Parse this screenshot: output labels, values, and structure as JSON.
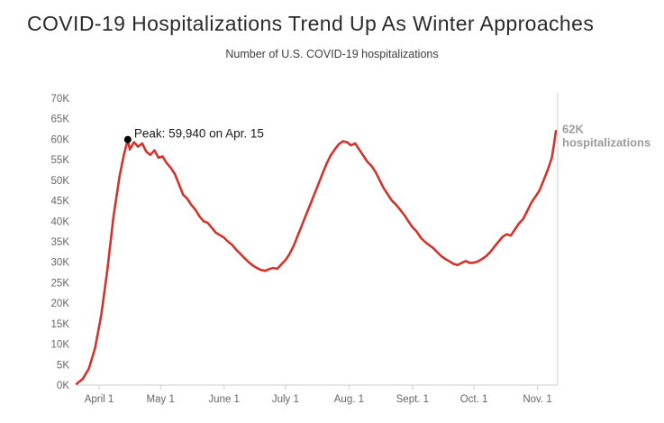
{
  "header": {
    "title": "COVID-19 Hospitalizations Trend Up As Winter Approaches",
    "subtitle": "Number of U.S. COVID-19 hospitalizations"
  },
  "chart_data": {
    "type": "line",
    "title": "Number of U.S. COVID-19 hospitalizations",
    "unit": "thousands of hospitalizations",
    "ylim": [
      0,
      70
    ],
    "grid": false,
    "legend": false,
    "line_color": "#d0342c",
    "annotation_color": "#000000",
    "end_label_color": "#9b9b9b",
    "axis_color": "#cccccc",
    "tick_label_color": "#666666",
    "y_ticks": [
      {
        "value": 0,
        "label": "0K"
      },
      {
        "value": 5,
        "label": "5K"
      },
      {
        "value": 10,
        "label": "10K"
      },
      {
        "value": 15,
        "label": "15K"
      },
      {
        "value": 20,
        "label": "20K"
      },
      {
        "value": 25,
        "label": "25K"
      },
      {
        "value": 30,
        "label": "30K"
      },
      {
        "value": 35,
        "label": "35K"
      },
      {
        "value": 40,
        "label": "40K"
      },
      {
        "value": 45,
        "label": "45K"
      },
      {
        "value": 50,
        "label": "50K"
      },
      {
        "value": 55,
        "label": "55K"
      },
      {
        "value": 60,
        "label": "60K"
      },
      {
        "value": 65,
        "label": "65K"
      },
      {
        "value": 70,
        "label": "70K"
      }
    ],
    "x_ticks": [
      {
        "date": "2020-04-01",
        "label": "April 1"
      },
      {
        "date": "2020-05-01",
        "label": "May 1"
      },
      {
        "date": "2020-06-01",
        "label": "June 1"
      },
      {
        "date": "2020-07-01",
        "label": "July 1"
      },
      {
        "date": "2020-08-01",
        "label": "Aug. 1"
      },
      {
        "date": "2020-09-01",
        "label": "Sept. 1"
      },
      {
        "date": "2020-10-01",
        "label": "Oct. 1"
      },
      {
        "date": "2020-11-01",
        "label": "Nov. 1"
      }
    ],
    "annotation": {
      "text": "Peak: 59,940 on Apr. 15",
      "date": "2020-04-15",
      "value": 59.94
    },
    "end_label": {
      "line1": "62K",
      "line2": "hospitalizations",
      "value": 62
    },
    "series": [
      {
        "name": "U.S. COVID-19 hospitalizations (thousands)",
        "dates": [
          "2020-03-21",
          "2020-03-24",
          "2020-03-27",
          "2020-03-30",
          "2020-04-02",
          "2020-04-05",
          "2020-04-08",
          "2020-04-11",
          "2020-04-13",
          "2020-04-15",
          "2020-04-16",
          "2020-04-18",
          "2020-04-20",
          "2020-04-22",
          "2020-04-24",
          "2020-04-26",
          "2020-04-28",
          "2020-04-30",
          "2020-05-02",
          "2020-05-04",
          "2020-05-06",
          "2020-05-08",
          "2020-05-10",
          "2020-05-12",
          "2020-05-14",
          "2020-05-16",
          "2020-05-18",
          "2020-05-20",
          "2020-05-22",
          "2020-05-24",
          "2020-05-26",
          "2020-05-28",
          "2020-05-30",
          "2020-06-01",
          "2020-06-03",
          "2020-06-05",
          "2020-06-07",
          "2020-06-09",
          "2020-06-11",
          "2020-06-13",
          "2020-06-15",
          "2020-06-17",
          "2020-06-19",
          "2020-06-21",
          "2020-06-23",
          "2020-06-25",
          "2020-06-27",
          "2020-06-29",
          "2020-07-01",
          "2020-07-03",
          "2020-07-05",
          "2020-07-07",
          "2020-07-09",
          "2020-07-11",
          "2020-07-13",
          "2020-07-15",
          "2020-07-17",
          "2020-07-19",
          "2020-07-21",
          "2020-07-23",
          "2020-07-25",
          "2020-07-27",
          "2020-07-29",
          "2020-07-31",
          "2020-08-02",
          "2020-08-04",
          "2020-08-06",
          "2020-08-08",
          "2020-08-10",
          "2020-08-12",
          "2020-08-14",
          "2020-08-16",
          "2020-08-18",
          "2020-08-20",
          "2020-08-22",
          "2020-08-24",
          "2020-08-26",
          "2020-08-28",
          "2020-08-30",
          "2020-09-01",
          "2020-09-03",
          "2020-09-05",
          "2020-09-07",
          "2020-09-09",
          "2020-09-11",
          "2020-09-13",
          "2020-09-15",
          "2020-09-17",
          "2020-09-19",
          "2020-09-21",
          "2020-09-23",
          "2020-09-25",
          "2020-09-27",
          "2020-09-29",
          "2020-10-01",
          "2020-10-03",
          "2020-10-05",
          "2020-10-07",
          "2020-10-09",
          "2020-10-11",
          "2020-10-13",
          "2020-10-15",
          "2020-10-17",
          "2020-10-19",
          "2020-10-21",
          "2020-10-23",
          "2020-10-25",
          "2020-10-27",
          "2020-10-29",
          "2020-10-31",
          "2020-11-02",
          "2020-11-04",
          "2020-11-06",
          "2020-11-08",
          "2020-11-09",
          "2020-11-10"
        ],
        "values": [
          0.3,
          1.5,
          4,
          9,
          17,
          28,
          41,
          51,
          56,
          59.94,
          57.5,
          59.3,
          58.2,
          59.0,
          57.0,
          56.2,
          57.3,
          55.5,
          55.8,
          54.2,
          53.0,
          51.5,
          49.0,
          46.5,
          45.5,
          44.0,
          42.8,
          41.2,
          40.0,
          39.6,
          38.4,
          37.2,
          36.6,
          36.0,
          35.0,
          34.2,
          33.0,
          32.0,
          31.0,
          30.0,
          29.2,
          28.6,
          28.1,
          27.9,
          28.3,
          28.6,
          28.4,
          29.5,
          30.5,
          32.0,
          34.0,
          36.5,
          39.0,
          41.5,
          44.0,
          46.5,
          49.0,
          51.5,
          54.0,
          56.0,
          57.5,
          58.8,
          59.5,
          59.3,
          58.5,
          59.0,
          57.5,
          56.0,
          54.5,
          53.5,
          52.0,
          50.0,
          48.0,
          46.5,
          45.0,
          44.0,
          42.8,
          41.5,
          40.0,
          38.5,
          37.5,
          36.0,
          35.0,
          34.2,
          33.5,
          32.5,
          31.5,
          30.8,
          30.2,
          29.6,
          29.3,
          29.8,
          30.3,
          29.8,
          29.9,
          30.2,
          30.8,
          31.5,
          32.5,
          33.8,
          35.0,
          36.2,
          36.8,
          36.5,
          38.0,
          39.5,
          40.5,
          42.5,
          44.5,
          46.0,
          47.5,
          50.0,
          52.5,
          55.5,
          58.5,
          62.0
        ]
      }
    ]
  }
}
